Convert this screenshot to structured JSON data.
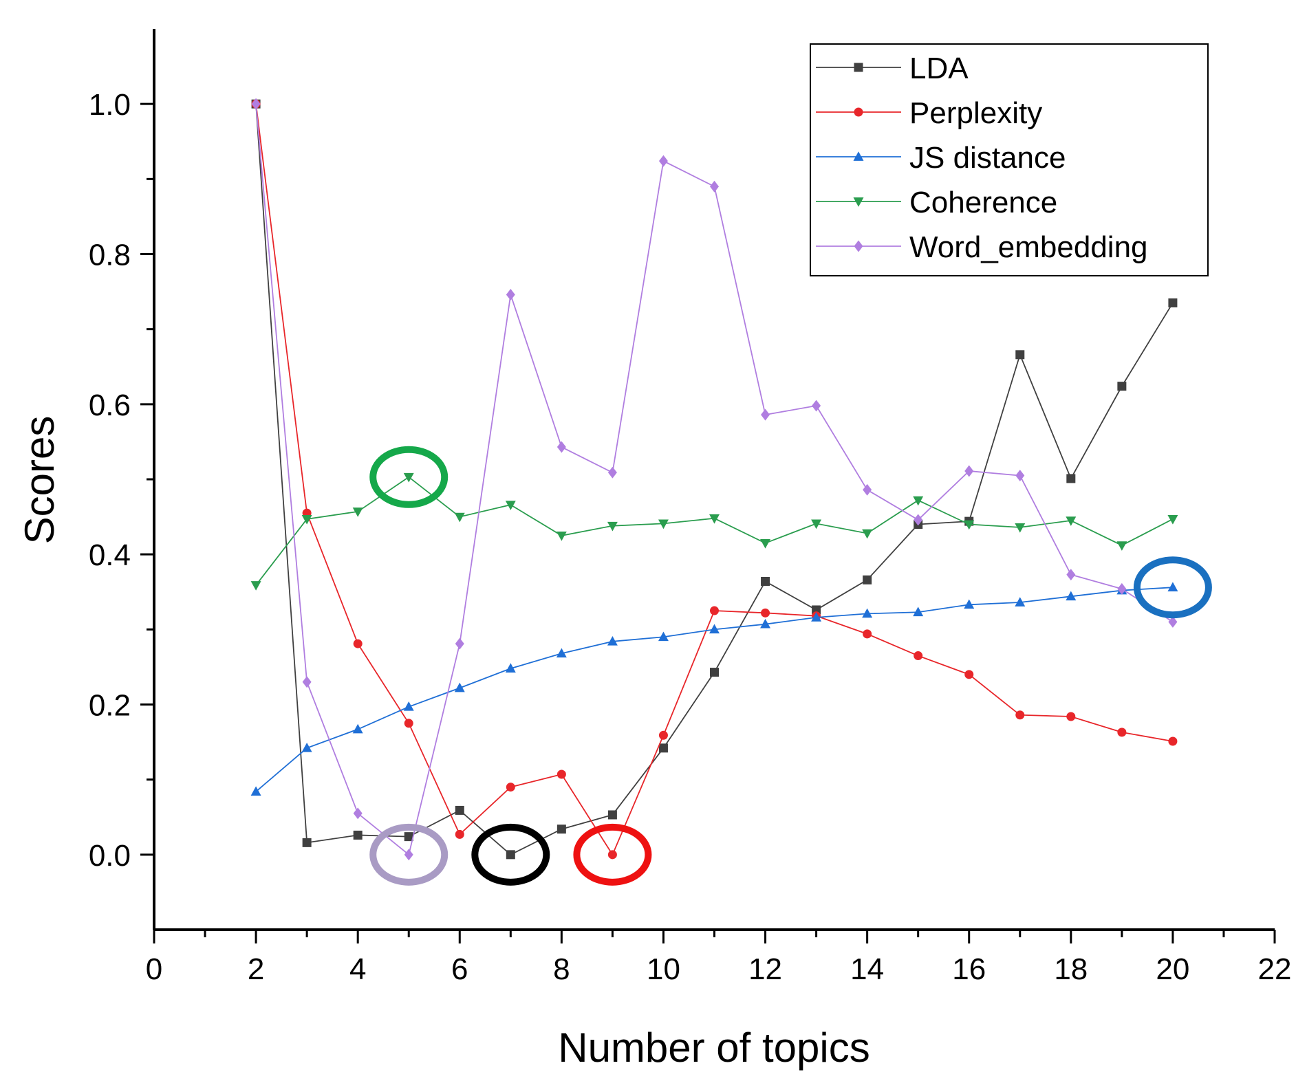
{
  "chart_data": {
    "type": "line",
    "title": "",
    "xlabel": "Number of topics",
    "ylabel": "Scores",
    "xlim": [
      0,
      22
    ],
    "ylim": [
      -0.1,
      1.1
    ],
    "xticks": [
      0,
      2,
      4,
      6,
      8,
      10,
      12,
      14,
      16,
      18,
      20,
      22
    ],
    "xtick_labels": [
      "0",
      "2",
      "4",
      "6",
      "8",
      "10",
      "12",
      "14",
      "16",
      "18",
      "20",
      "22"
    ],
    "yticks": [
      0.0,
      0.2,
      0.4,
      0.6,
      0.8,
      1.0
    ],
    "ytick_labels": [
      "0.0",
      "0.2",
      "0.4",
      "0.6",
      "0.8",
      "1.0"
    ],
    "grid": false,
    "legend_position": "top-right",
    "x": [
      2,
      3,
      4,
      5,
      6,
      7,
      8,
      9,
      10,
      11,
      12,
      13,
      14,
      15,
      16,
      17,
      18,
      19,
      20
    ],
    "series": [
      {
        "name": "LDA",
        "color": "#404040",
        "marker": "square",
        "values": [
          1.0,
          0.016,
          0.026,
          0.024,
          0.059,
          0.0,
          0.034,
          0.053,
          0.142,
          0.243,
          0.364,
          0.326,
          0.366,
          0.44,
          0.444,
          0.666,
          0.501,
          0.624,
          0.735
        ]
      },
      {
        "name": "Perplexity",
        "color": "#e8262a",
        "marker": "circle",
        "values": [
          1.0,
          0.455,
          0.281,
          0.175,
          0.027,
          0.09,
          0.107,
          0.0,
          0.159,
          0.325,
          0.322,
          0.318,
          0.294,
          0.265,
          0.24,
          0.186,
          0.184,
          0.163,
          0.151
        ]
      },
      {
        "name": "JS distance",
        "color": "#1f6fd6",
        "marker": "triangle-up",
        "values": [
          0.084,
          0.142,
          0.167,
          0.197,
          0.222,
          0.248,
          0.268,
          0.284,
          0.29,
          0.3,
          0.307,
          0.316,
          0.321,
          0.323,
          0.333,
          0.336,
          0.344,
          0.352,
          0.356
        ]
      },
      {
        "name": "Coherence",
        "color": "#2a9d4e",
        "marker": "triangle-down",
        "values": [
          0.359,
          0.447,
          0.457,
          0.503,
          0.45,
          0.466,
          0.425,
          0.438,
          0.441,
          0.448,
          0.415,
          0.441,
          0.428,
          0.472,
          0.44,
          0.436,
          0.445,
          0.412,
          0.447
        ]
      },
      {
        "name": "Word_embedding",
        "color": "#b07ee0",
        "marker": "diamond",
        "values": [
          1.0,
          0.23,
          0.055,
          0.0,
          0.281,
          0.746,
          0.543,
          0.509,
          0.924,
          0.89,
          0.586,
          0.598,
          0.486,
          0.446,
          0.511,
          0.505,
          0.373,
          0.354,
          0.31
        ]
      }
    ],
    "annotations": [
      {
        "type": "ellipse",
        "label": "Coherence max",
        "x": 5,
        "y": 0.503,
        "color": "#15a84a"
      },
      {
        "type": "ellipse",
        "label": "Word_embedding min",
        "x": 5,
        "y": 0.0,
        "color": "#a99bc4"
      },
      {
        "type": "ellipse",
        "label": "LDA min",
        "x": 7,
        "y": 0.0,
        "color": "#000000"
      },
      {
        "type": "ellipse",
        "label": "Perplexity min",
        "x": 9,
        "y": 0.0,
        "color": "#ee1111"
      },
      {
        "type": "ellipse",
        "label": "JS distance max",
        "x": 20,
        "y": 0.356,
        "color": "#1a70c0"
      }
    ]
  }
}
